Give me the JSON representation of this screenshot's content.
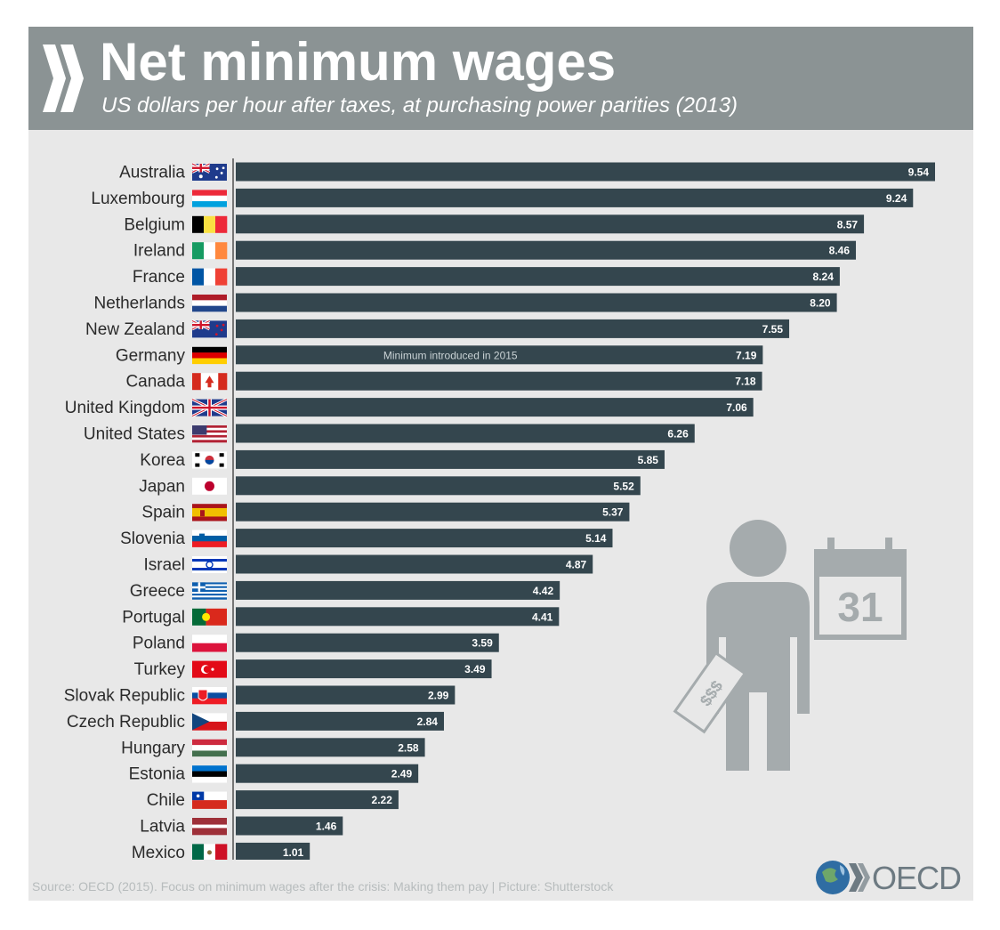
{
  "header": {
    "title": "Net minimum wages",
    "subtitle": "US dollars per hour after taxes, at purchasing power parities (2013)"
  },
  "footer": {
    "source": "Source: OECD (2015). Focus on minimum wages after the crisis: Making them pay | Picture: Shutterstock",
    "logo_text": "OECD"
  },
  "illustration": {
    "calendar_day": "31",
    "money_label": "$$$"
  },
  "colors": {
    "header_bg": "#8b9394",
    "panel_bg": "#e8e8e8",
    "bar": "#34464e",
    "illustration": "#a5abad"
  },
  "chart_data": {
    "type": "bar",
    "orientation": "horizontal",
    "title": "Net minimum wages",
    "subtitle": "US dollars per hour after taxes, at purchasing power parities (2013)",
    "categories": [
      "Australia",
      "Luxembourg",
      "Belgium",
      "Ireland",
      "France",
      "Netherlands",
      "New Zealand",
      "Germany",
      "Canada",
      "United Kingdom",
      "United States",
      "Korea",
      "Japan",
      "Spain",
      "Slovenia",
      "Israel",
      "Greece",
      "Portugal",
      "Poland",
      "Turkey",
      "Slovak Republic",
      "Czech Republic",
      "Hungary",
      "Estonia",
      "Chile",
      "Latvia",
      "Mexico"
    ],
    "values": [
      9.54,
      9.24,
      8.57,
      8.46,
      8.24,
      8.2,
      7.55,
      7.19,
      7.18,
      7.06,
      6.26,
      5.85,
      5.52,
      5.37,
      5.14,
      4.87,
      4.42,
      4.41,
      3.59,
      3.49,
      2.99,
      2.84,
      2.58,
      2.49,
      2.22,
      1.46,
      1.01
    ],
    "value_labels": [
      "9.54",
      "9.24",
      "8.57",
      "8.46",
      "8.24",
      "8.20",
      "7.55",
      "7.19",
      "7.18",
      "7.06",
      "6.26",
      "5.85",
      "5.52",
      "5.37",
      "5.14",
      "4.87",
      "4.42",
      "4.41",
      "3.59",
      "3.49",
      "2.99",
      "2.84",
      "2.58",
      "2.49",
      "2.22",
      "1.46",
      "1.01"
    ],
    "flags": [
      "australia-flag",
      "luxembourg-flag",
      "belgium-flag",
      "ireland-flag",
      "france-flag",
      "netherlands-flag",
      "new-zealand-flag",
      "germany-flag",
      "canada-flag",
      "united-kingdom-flag",
      "united-states-flag",
      "korea-flag",
      "japan-flag",
      "spain-flag",
      "slovenia-flag",
      "israel-flag",
      "greece-flag",
      "portugal-flag",
      "poland-flag",
      "turkey-flag",
      "slovak-republic-flag",
      "czech-republic-flag",
      "hungary-flag",
      "estonia-flag",
      "chile-flag",
      "latvia-flag",
      "mexico-flag"
    ],
    "annotations": [
      {
        "category": "Germany",
        "text": "Minimum introduced in 2015"
      }
    ],
    "xlim": [
      0,
      9.54
    ],
    "grid": false,
    "legend": "none"
  }
}
